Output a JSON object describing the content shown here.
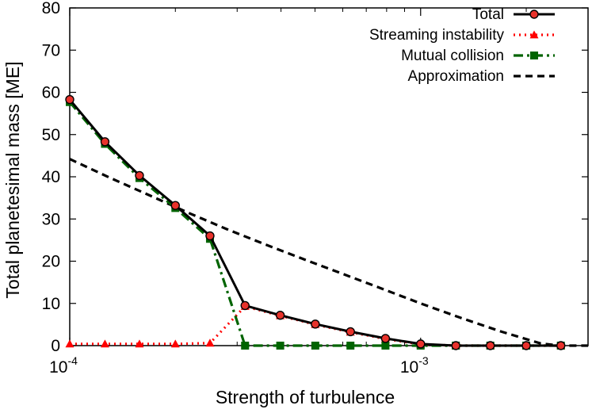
{
  "chart_data": {
    "type": "line",
    "xlabel": "Strength of turbulence",
    "ylabel": "Total planetesimal mass [ME]",
    "x_scale": "log",
    "xlim": [
      0.0001,
      0.003
    ],
    "ylim": [
      0,
      80
    ],
    "x_ticks": [
      {
        "base": "10",
        "exp": "-4",
        "value": 0.0001
      },
      {
        "base": "10",
        "exp": "-3",
        "value": 0.001
      }
    ],
    "y_ticks": [
      0,
      10,
      20,
      30,
      40,
      50,
      60,
      70,
      80
    ],
    "grid": false,
    "legend_position": "top-right",
    "x": [
      0.0001,
      0.000126,
      0.000158,
      0.0002,
      0.000251,
      0.000316,
      0.000398,
      0.000501,
      0.000631,
      0.000794,
      0.001,
      0.00126,
      0.00158,
      0.002,
      0.00251,
      0.00316
    ],
    "series": [
      {
        "name": "Total",
        "color": "#000000",
        "style": "solid",
        "marker": "circle",
        "values": [
          58.3,
          48.3,
          40.3,
          33.2,
          26.0,
          9.5,
          7.2,
          5.1,
          3.3,
          1.7,
          0.4,
          0,
          0,
          0,
          0,
          0
        ]
      },
      {
        "name": "Streaming instability",
        "color": "#ff0000",
        "style": "dotted",
        "marker": "triangle",
        "values": [
          0.4,
          0.4,
          0.4,
          0.4,
          0.6,
          9.3,
          7.1,
          5.0,
          3.2,
          1.6,
          0.3,
          0,
          0,
          0,
          0,
          0
        ]
      },
      {
        "name": "Mutual collision",
        "color": "#006400",
        "style": "dashdot",
        "marker": "square",
        "values": [
          57.7,
          47.8,
          39.7,
          32.6,
          25.3,
          0,
          0,
          0,
          0,
          0,
          0,
          0,
          0,
          0,
          0,
          0
        ]
      },
      {
        "name": "Approximation",
        "color": "#000000",
        "style": "dashed",
        "marker": "none",
        "x": [
          0.0001,
          0.00013,
          0.00017,
          0.00022,
          0.00028,
          0.00036,
          0.00046,
          0.0006,
          0.00077,
          0.001,
          0.0013,
          0.0017,
          0.0022,
          0.0025,
          0.003
        ],
        "values": [
          44.2,
          39.8,
          35.5,
          31.3,
          27.6,
          24.0,
          20.6,
          17.0,
          13.6,
          10.0,
          6.6,
          3.3,
          0.5,
          0,
          0
        ]
      }
    ]
  }
}
